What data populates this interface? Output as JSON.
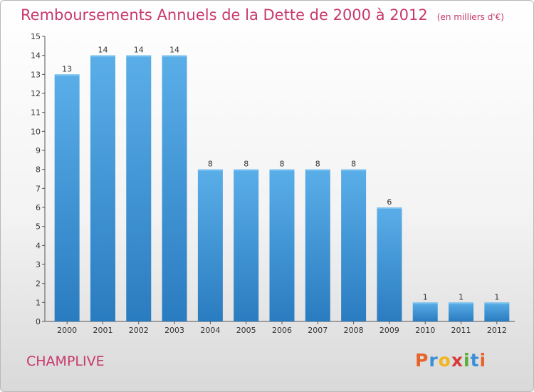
{
  "chart_data": {
    "type": "bar",
    "title": "Remboursements Annuels de la Dette de 2000 à 2012",
    "unit": "(en milliers d'€)",
    "categories": [
      "2000",
      "2001",
      "2002",
      "2003",
      "2004",
      "2005",
      "2006",
      "2007",
      "2008",
      "2009",
      "2010",
      "2011",
      "2012"
    ],
    "values": [
      13,
      14,
      14,
      14,
      8,
      8,
      8,
      8,
      8,
      6,
      1,
      1,
      1
    ],
    "data_labels": [
      "13",
      "14",
      "14",
      "14",
      "8",
      "8",
      "8",
      "8",
      "8",
      "6",
      "1",
      "1",
      "1"
    ],
    "ylim": [
      0,
      15
    ],
    "yticks": [
      "0",
      "1",
      "2",
      "3",
      "4",
      "5",
      "6",
      "7",
      "8",
      "9",
      "10",
      "11",
      "12",
      "13",
      "14",
      "15"
    ],
    "xlabel": "",
    "ylabel": "",
    "grid": false,
    "bar_color": "#4b9fdc"
  },
  "footer": {
    "commune": "CHAMPLIVE",
    "brand_letters": [
      "P",
      "r",
      "o",
      "x",
      "i",
      "t",
      "i"
    ],
    "brand_colors": [
      "#e8632a",
      "#3b8fd6",
      "#f2b51c",
      "#d63b3b",
      "#5aae3c",
      "#3b8fd6",
      "#e8632a"
    ]
  }
}
